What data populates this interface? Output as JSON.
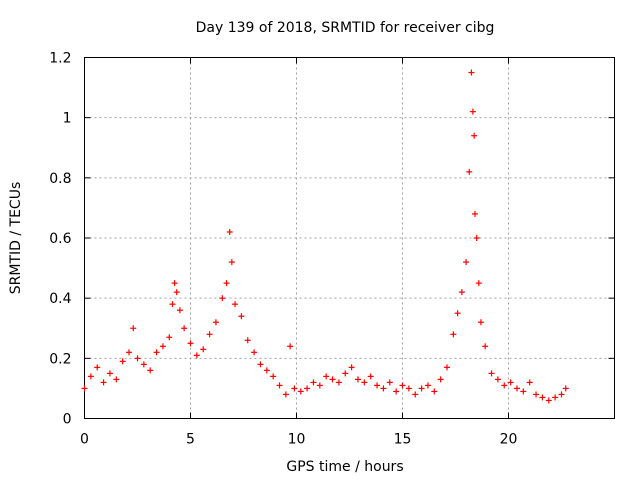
{
  "chart_data": {
    "type": "scatter",
    "title": "Day 139 of 2018, SRMTID for receiver cibg",
    "xlabel": "GPS time / hours",
    "ylabel": "SRMTID / TECUs",
    "xlim": [
      0,
      25
    ],
    "ylim": [
      0,
      1.2
    ],
    "x_ticks": [
      "0",
      "5",
      "10",
      "15",
      "20"
    ],
    "y_ticks": [
      "0",
      "0.2",
      "0.4",
      "0.6",
      "0.8",
      "1",
      "1.2"
    ],
    "grid": true,
    "marker": "+",
    "color": "#ff0000",
    "series": [
      {
        "name": "SRMTID",
        "x": [
          0.0,
          0.3,
          0.6,
          0.9,
          1.2,
          1.5,
          1.8,
          2.1,
          2.3,
          2.5,
          2.8,
          3.1,
          3.4,
          3.7,
          4.0,
          4.15,
          4.25,
          4.35,
          4.5,
          4.7,
          5.0,
          5.3,
          5.6,
          5.9,
          6.2,
          6.5,
          6.7,
          6.85,
          6.95,
          7.1,
          7.4,
          7.7,
          8.0,
          8.3,
          8.6,
          8.9,
          9.2,
          9.5,
          9.7,
          9.9,
          10.2,
          10.5,
          10.8,
          11.1,
          11.4,
          11.7,
          12.0,
          12.3,
          12.6,
          12.9,
          13.2,
          13.5,
          13.8,
          14.1,
          14.4,
          14.7,
          15.0,
          15.3,
          15.6,
          15.9,
          16.2,
          16.5,
          16.8,
          17.1,
          17.4,
          17.6,
          17.8,
          18.0,
          18.15,
          18.25,
          18.32,
          18.38,
          18.42,
          18.5,
          18.6,
          18.7,
          18.9,
          19.2,
          19.5,
          19.8,
          20.1,
          20.4,
          20.7,
          21.0,
          21.3,
          21.6,
          21.9,
          22.2,
          22.5,
          22.7
        ],
        "y": [
          0.1,
          0.14,
          0.17,
          0.12,
          0.15,
          0.13,
          0.19,
          0.22,
          0.3,
          0.2,
          0.18,
          0.16,
          0.22,
          0.24,
          0.27,
          0.38,
          0.45,
          0.42,
          0.36,
          0.3,
          0.25,
          0.21,
          0.23,
          0.28,
          0.32,
          0.4,
          0.45,
          0.62,
          0.52,
          0.38,
          0.34,
          0.26,
          0.22,
          0.18,
          0.16,
          0.14,
          0.11,
          0.08,
          0.24,
          0.1,
          0.09,
          0.1,
          0.12,
          0.11,
          0.14,
          0.13,
          0.12,
          0.15,
          0.17,
          0.13,
          0.12,
          0.14,
          0.11,
          0.1,
          0.12,
          0.09,
          0.11,
          0.1,
          0.08,
          0.1,
          0.11,
          0.09,
          0.13,
          0.17,
          0.28,
          0.35,
          0.42,
          0.52,
          0.82,
          1.15,
          1.02,
          0.94,
          0.68,
          0.6,
          0.45,
          0.32,
          0.24,
          0.15,
          0.13,
          0.11,
          0.12,
          0.1,
          0.09,
          0.12,
          0.08,
          0.07,
          0.06,
          0.07,
          0.08,
          0.1
        ]
      }
    ]
  }
}
